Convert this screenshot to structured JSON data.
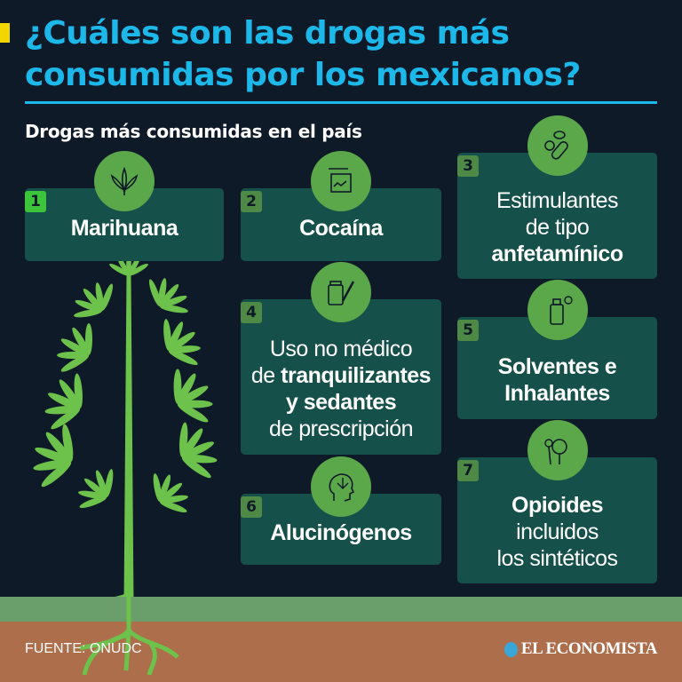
{
  "title": "¿Cuáles son las drogas más consumidas por los mexicanos?",
  "subtitle": "Drogas más consumidas en el país",
  "colors": {
    "background": "#0f1a29",
    "title": "#1cb8ea",
    "card": "#15504a",
    "icon_circle": "#5aa84a",
    "accent": "#f2d600",
    "ground_green": "#6a9e6a",
    "ground_brown": "#ad6e4c"
  },
  "drugs": [
    {
      "rank": "1",
      "icon": "cannabis-leaf-icon",
      "lines": [
        {
          "t": "Marihuana",
          "b": true
        }
      ]
    },
    {
      "rank": "2",
      "icon": "cocaine-bag-icon",
      "lines": [
        {
          "t": "Cocaína",
          "b": true
        }
      ]
    },
    {
      "rank": "3",
      "icon": "pills-icon",
      "lines": [
        {
          "t": "Estimulantes",
          "b": false
        },
        {
          "t": "de tipo",
          "b": false
        },
        {
          "t": "anfetamínico",
          "b": true
        }
      ]
    },
    {
      "rank": "4",
      "icon": "medicine-syringe-icon",
      "lines": [
        {
          "t": "Uso no médico",
          "b": false
        },
        {
          "t": "de tranquilizantes",
          "b": "partial",
          "pre": "de ",
          "bold": "tranquilizantes"
        },
        {
          "t": "y sedantes",
          "b": true
        },
        {
          "t": "de prescripción",
          "b": false
        }
      ]
    },
    {
      "rank": "5",
      "icon": "spray-can-icon",
      "lines": [
        {
          "t": "Solventes e",
          "b": true
        },
        {
          "t": "Inhalantes",
          "b": true
        }
      ]
    },
    {
      "rank": "6",
      "icon": "head-leaf-icon",
      "lines": [
        {
          "t": "Alucinógenos",
          "b": true
        }
      ]
    },
    {
      "rank": "7",
      "icon": "poppy-icon",
      "lines": [
        {
          "t": "Opioides",
          "b": true
        },
        {
          "t": "incluidos",
          "b": false
        },
        {
          "t": "los sintéticos",
          "b": false
        }
      ]
    }
  ],
  "source": "FUENTE: ONUDC",
  "logo": "EL ECONOMISTA"
}
